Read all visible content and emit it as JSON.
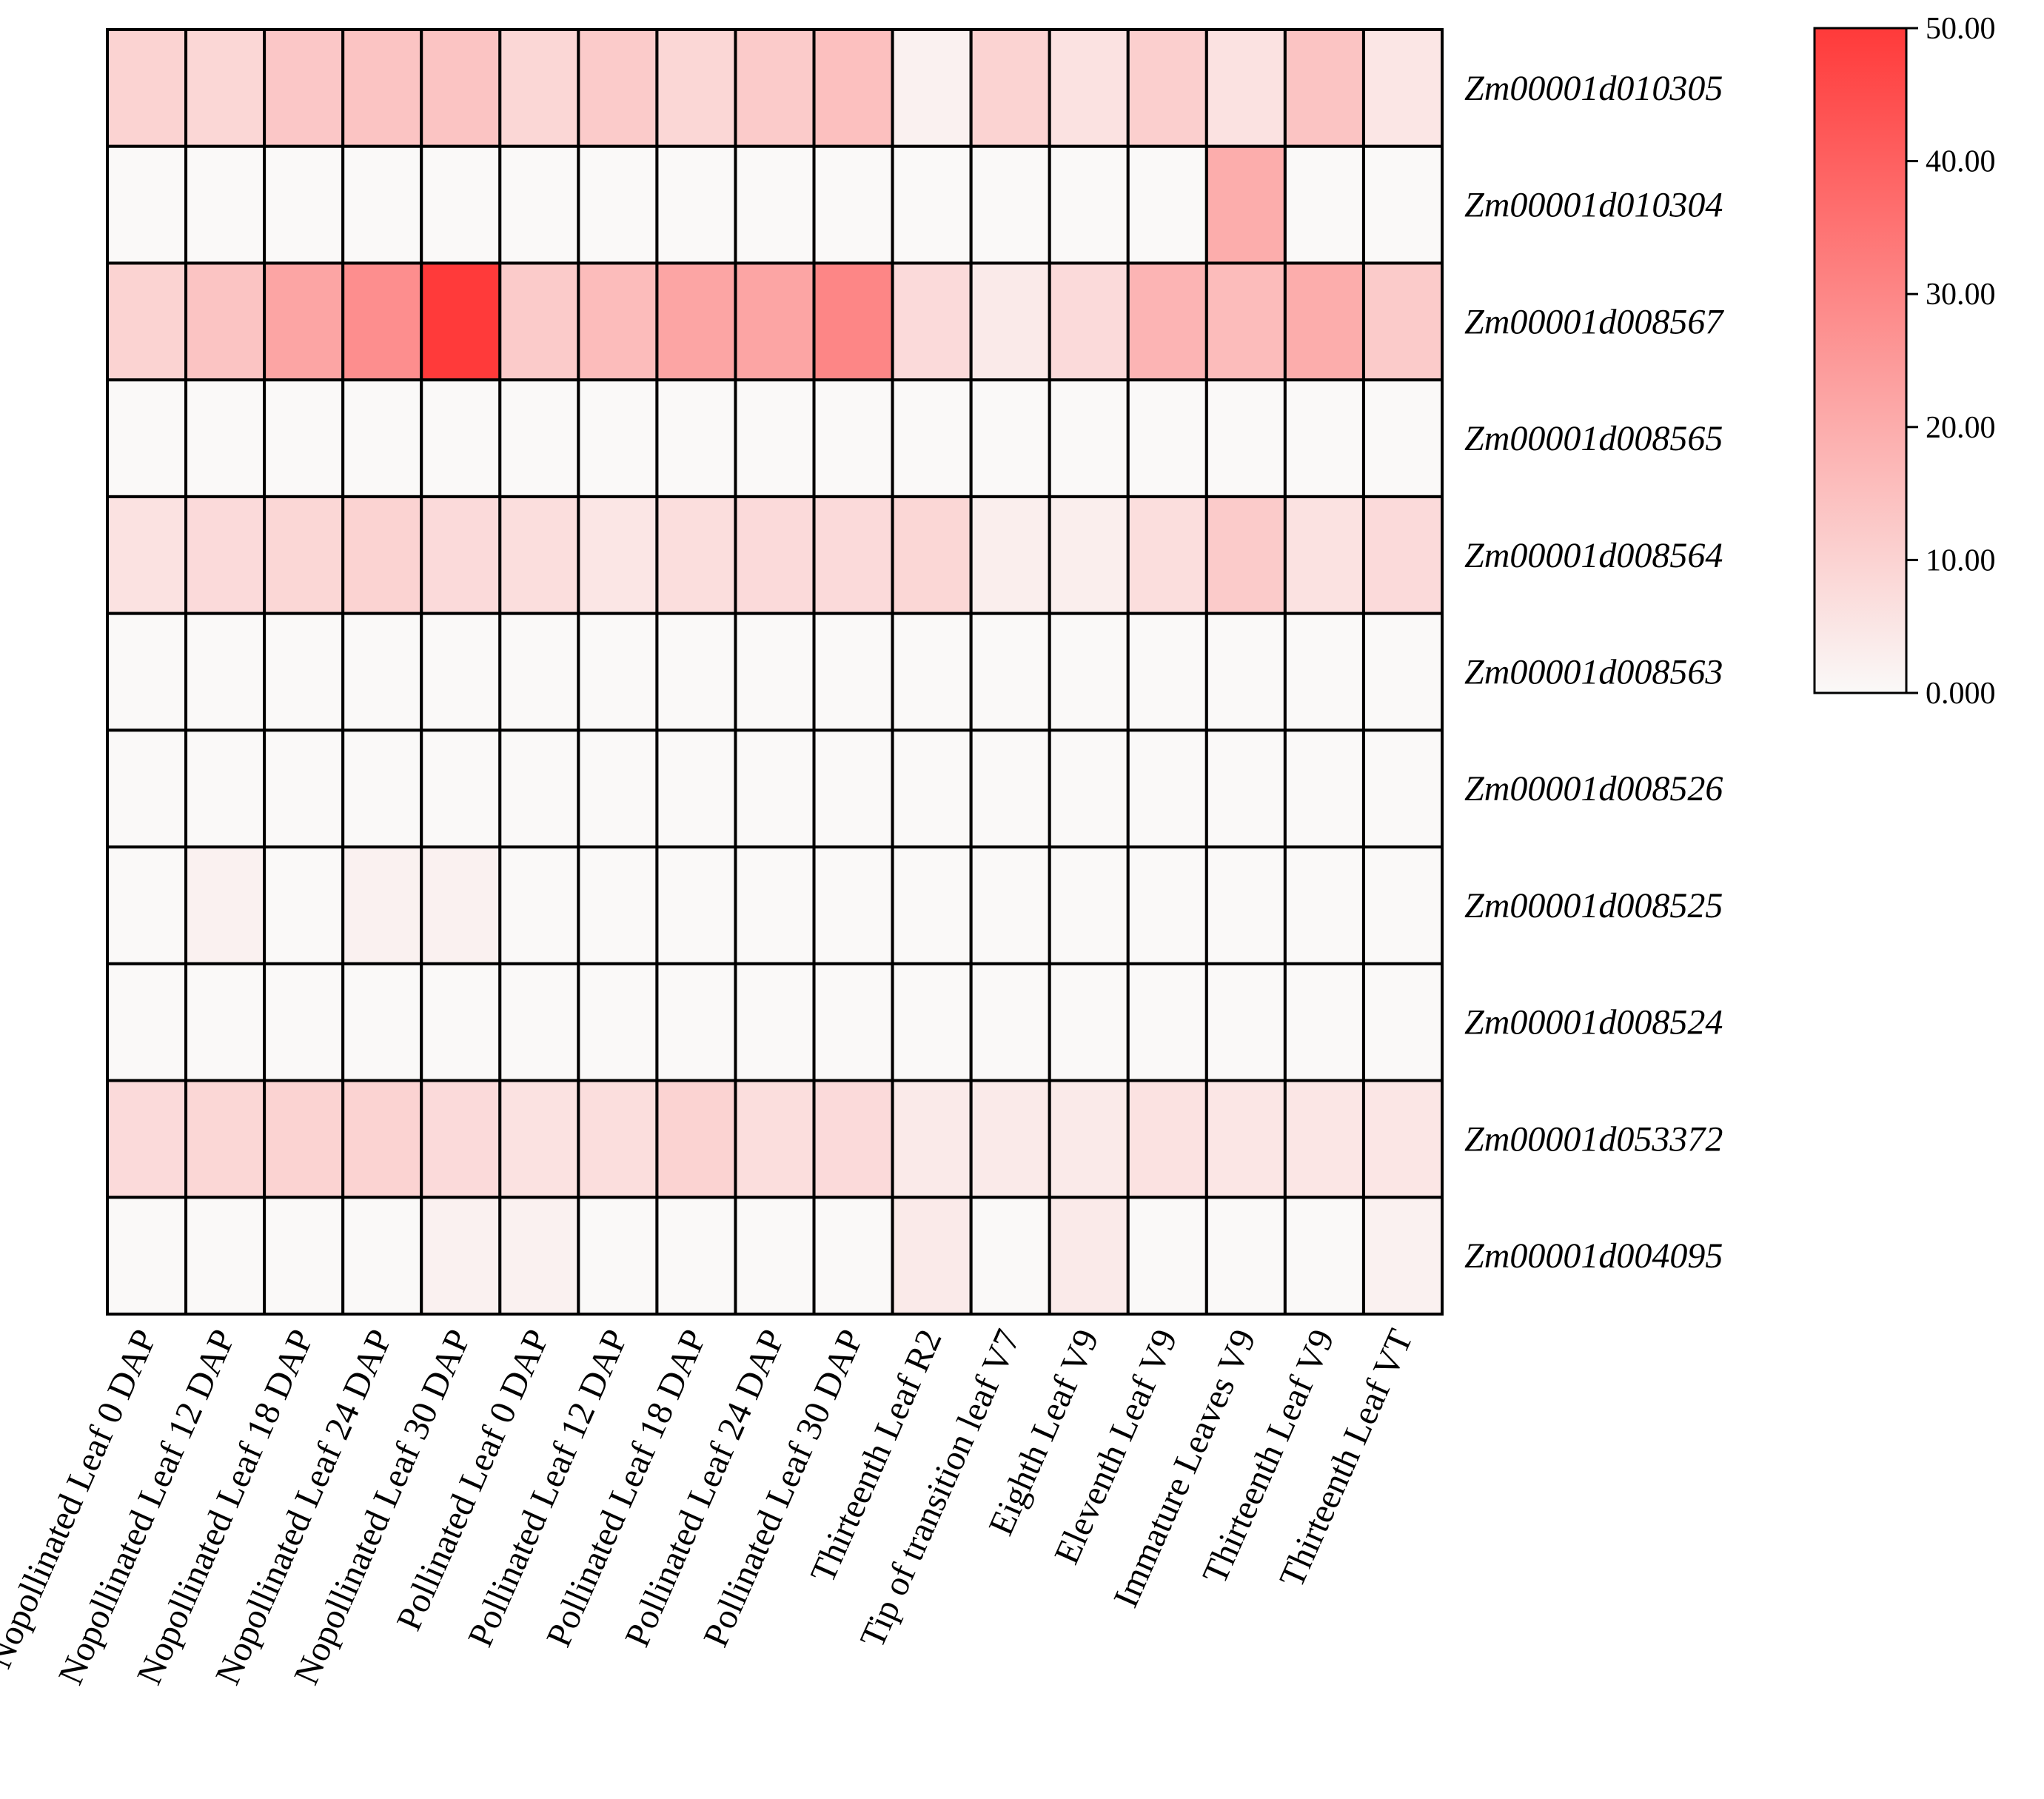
{
  "chart_data": {
    "type": "heatmap",
    "title": "",
    "xlabel": "",
    "ylabel": "",
    "rows": [
      "Zm00001d010305",
      "Zm00001d010304",
      "Zm00001d008567",
      "Zm00001d008565",
      "Zm00001d008564",
      "Zm00001d008563",
      "Zm00001d008526",
      "Zm00001d008525",
      "Zm00001d008524",
      "Zm00001d053372",
      "Zm00001d004095"
    ],
    "columns": [
      "Nopollinated Leaf 0 DAP",
      "Nopollinated Leaf 12 DAP",
      "Nopollinated Leaf 18 DAP",
      "Nopollinated Leaf 24 DAP",
      "Nopollinated Leaf 30 DAP",
      "Pollinated Leaf 0 DAP",
      "Pollinated Leaf 12 DAP",
      "Pollinated Leaf 18 DAP",
      "Pollinated Leaf 24 DAP",
      "Pollinated Leaf 30 DAP",
      "Thirteenth Leaf R2",
      "Tip of transition leaf V7",
      "Eighth Leaf V9",
      "Eleventh Leaf V9",
      "Immature Leaves V9",
      "Thirteenth Leaf V9",
      "Thirteenth Leaf VT"
    ],
    "values": [
      [
        10,
        9,
        13,
        14,
        14,
        9,
        12,
        9,
        12,
        15,
        2,
        10,
        6,
        11,
        6,
        14,
        5
      ],
      [
        0,
        0,
        0,
        0,
        0,
        0,
        0,
        0,
        0,
        0,
        0,
        0,
        0,
        0,
        20,
        0,
        0
      ],
      [
        10,
        14,
        22,
        28,
        50,
        12,
        16,
        22,
        22,
        30,
        8,
        4,
        8,
        18,
        16,
        20,
        12
      ],
      [
        0,
        0,
        0,
        0,
        0,
        0,
        0,
        0,
        0,
        0,
        0,
        0,
        0,
        0,
        0,
        0,
        0
      ],
      [
        6,
        8,
        9,
        10,
        8,
        7,
        5,
        7,
        8,
        8,
        9,
        3,
        3,
        7,
        12,
        6,
        8
      ],
      [
        0,
        0,
        0,
        0,
        0,
        0,
        0,
        0,
        0,
        0,
        0,
        0,
        0,
        0,
        0,
        0,
        0
      ],
      [
        0,
        0,
        0,
        0,
        0,
        0,
        0,
        0,
        0,
        0,
        0,
        0,
        0,
        0,
        0,
        0,
        0
      ],
      [
        0,
        2,
        0,
        2,
        2,
        0,
        0,
        0,
        0,
        0,
        0,
        0,
        0,
        0,
        0,
        0,
        0
      ],
      [
        0,
        0,
        0,
        0,
        0,
        0,
        0,
        0,
        0,
        0,
        0,
        0,
        0,
        0,
        0,
        0,
        0
      ],
      [
        8,
        9,
        10,
        10,
        8,
        6,
        7,
        10,
        7,
        8,
        4,
        4,
        4,
        6,
        5,
        5,
        5
      ],
      [
        0,
        0,
        0,
        0,
        2,
        2,
        0,
        0,
        0,
        0,
        4,
        0,
        4,
        0,
        0,
        0,
        2
      ]
    ],
    "colorbar": {
      "min": 0,
      "max": 50,
      "ticks": [
        50,
        40,
        30,
        20,
        10,
        0
      ],
      "tick_labels": [
        "50.00",
        "40.00",
        "30.00",
        "20.00",
        "10.00",
        "0.000"
      ],
      "low_color": "#faf9f8",
      "high_color": "#ff3a3a"
    },
    "grid": true,
    "legend_position": "top-right"
  }
}
